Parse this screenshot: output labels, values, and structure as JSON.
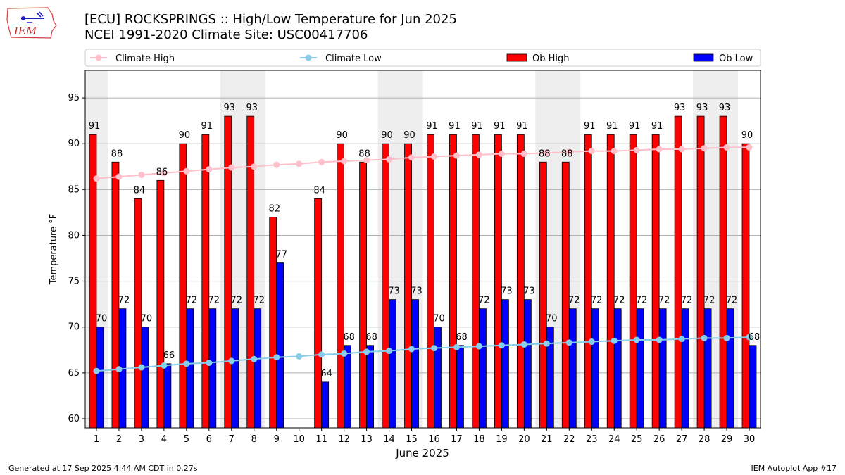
{
  "logo": {
    "text": "IEM"
  },
  "titles": {
    "line1": "[ECU] ROCKSPRINGS :: High/Low Temperature for Jun 2025",
    "line2": "NCEI 1991-2020 Climate Site: USC00417706"
  },
  "footer": {
    "left": "Generated at 17 Sep 2025 4:44 AM CDT in 0.27s",
    "right": "IEM Autoplot App #17"
  },
  "colors": {
    "ob_high": "#ff0000",
    "ob_low": "#0000ff",
    "climate_high": "#ffc0cb",
    "climate_low": "#87ceeb",
    "weekend_shade": "#eeeeee",
    "grid": "#b0b0b0"
  },
  "chart_data": {
    "type": "bar",
    "xlabel": "June 2025",
    "ylabel": "Temperature °F",
    "ylim": [
      59,
      98
    ],
    "yticks": [
      60,
      65,
      70,
      75,
      80,
      85,
      90,
      95
    ],
    "grid": "horizontal",
    "legend_position": "top",
    "categories": [
      "1",
      "2",
      "3",
      "4",
      "5",
      "6",
      "7",
      "8",
      "9",
      "10",
      "11",
      "12",
      "13",
      "14",
      "15",
      "16",
      "17",
      "18",
      "19",
      "20",
      "21",
      "22",
      "23",
      "24",
      "25",
      "26",
      "27",
      "28",
      "29",
      "30"
    ],
    "shaded_days": [
      1,
      7,
      8,
      14,
      15,
      21,
      22,
      28,
      29
    ],
    "series": [
      {
        "name": "Ob High",
        "kind": "bar",
        "values": [
          91,
          88,
          84,
          86,
          90,
          91,
          93,
          93,
          82,
          null,
          84,
          90,
          88,
          90,
          90,
          91,
          91,
          91,
          91,
          91,
          88,
          88,
          91,
          91,
          91,
          91,
          93,
          93,
          93,
          90
        ]
      },
      {
        "name": "Ob Low",
        "kind": "bar",
        "values": [
          70,
          72,
          70,
          66,
          72,
          72,
          72,
          72,
          77,
          null,
          64,
          68,
          68,
          73,
          73,
          70,
          68,
          72,
          73,
          73,
          70,
          72,
          72,
          72,
          72,
          72,
          72,
          72,
          72,
          68
        ]
      },
      {
        "name": "Climate High",
        "kind": "line",
        "values": [
          86.2,
          86.4,
          86.6,
          86.8,
          87.0,
          87.2,
          87.4,
          87.5,
          87.7,
          87.8,
          88.0,
          88.1,
          88.2,
          88.3,
          88.5,
          88.6,
          88.7,
          88.8,
          88.9,
          88.9,
          89.0,
          89.1,
          89.2,
          89.2,
          89.3,
          89.4,
          89.4,
          89.5,
          89.6,
          89.6
        ]
      },
      {
        "name": "Climate Low",
        "kind": "line",
        "values": [
          65.2,
          65.4,
          65.6,
          65.8,
          66.0,
          66.1,
          66.3,
          66.5,
          66.7,
          66.8,
          67.0,
          67.1,
          67.3,
          67.4,
          67.6,
          67.7,
          67.8,
          67.9,
          68.0,
          68.1,
          68.2,
          68.3,
          68.4,
          68.5,
          68.6,
          68.6,
          68.7,
          68.8,
          68.8,
          68.9
        ]
      }
    ]
  }
}
